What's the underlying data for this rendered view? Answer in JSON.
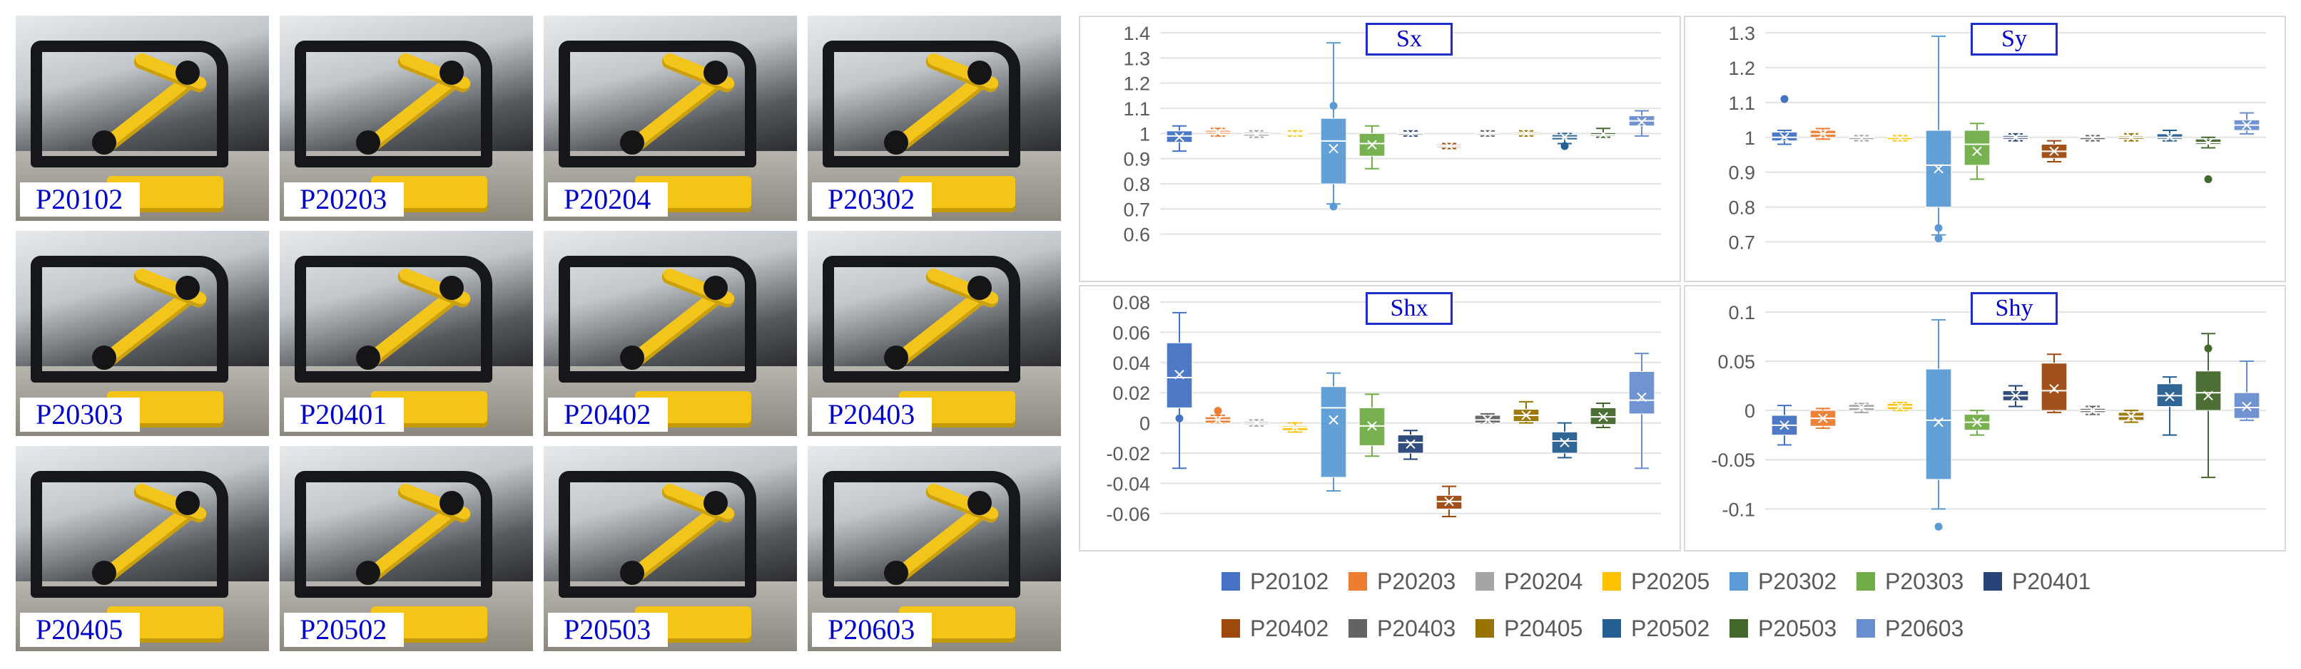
{
  "photos": [
    {
      "label": "P20102"
    },
    {
      "label": "P20203"
    },
    {
      "label": "P20204"
    },
    {
      "label": "P20302"
    },
    {
      "label": "P20303"
    },
    {
      "label": "P20401"
    },
    {
      "label": "P20402"
    },
    {
      "label": "P20403"
    },
    {
      "label": "P20405"
    },
    {
      "label": "P20502"
    },
    {
      "label": "P20503"
    },
    {
      "label": "P20603"
    }
  ],
  "colors": {
    "P20102": "#4472C4",
    "P20203": "#ED7D31",
    "P20204": "#A5A5A5",
    "P20205": "#FFC000",
    "P20302": "#5B9BD5",
    "P20303": "#70AD47",
    "P20401": "#264478",
    "P20402": "#9E480E",
    "P20403": "#636363",
    "P20405": "#997300",
    "P20502": "#255E91",
    "P20503": "#43682B",
    "P20603": "#698ED0"
  },
  "chart_data": [
    {
      "type": "box",
      "title": "Sx",
      "ylim": [
        0.5,
        1.4
      ],
      "yticks": [
        0.6,
        0.7,
        0.8,
        0.9,
        1,
        1.1,
        1.2,
        1.3,
        1.4
      ],
      "ytick_labels": [
        "0.6",
        "0.7",
        "0.8",
        "0.9",
        "1",
        "1.1",
        "1.2",
        "1.3",
        "1.4"
      ],
      "series": [
        {
          "name": "P20102",
          "min": 0.93,
          "q1": 0.965,
          "median": 0.99,
          "q3": 1.01,
          "max": 1.03,
          "mean": 0.985,
          "points": []
        },
        {
          "name": "P20203",
          "min": 0.99,
          "q1": 0.998,
          "median": 1.005,
          "q3": 1.012,
          "max": 1.02,
          "mean": 1.005,
          "points": []
        },
        {
          "name": "P20204",
          "min": 0.985,
          "q1": 0.99,
          "median": 0.998,
          "q3": 1.004,
          "max": 1.01,
          "mean": 0.998,
          "points": []
        },
        {
          "name": "P20205",
          "min": 0.99,
          "q1": 0.995,
          "median": 1.0,
          "q3": 1.004,
          "max": 1.01,
          "mean": 0.998,
          "points": []
        },
        {
          "name": "P20302",
          "min": 0.72,
          "q1": 0.8,
          "median": 0.97,
          "q3": 1.06,
          "max": 1.36,
          "mean": 0.94,
          "points": [
            0.71,
            1.11
          ]
        },
        {
          "name": "P20303",
          "min": 0.86,
          "q1": 0.91,
          "median": 0.96,
          "q3": 1.0,
          "max": 1.03,
          "mean": 0.955,
          "points": []
        },
        {
          "name": "P20401",
          "min": 0.99,
          "q1": 0.995,
          "median": 1.0,
          "q3": 1.003,
          "max": 1.01,
          "mean": 0.999,
          "points": []
        },
        {
          "name": "P20402",
          "min": 0.94,
          "q1": 0.945,
          "median": 0.95,
          "q3": 0.955,
          "max": 0.96,
          "mean": 0.95,
          "points": []
        },
        {
          "name": "P20403",
          "min": 0.99,
          "q1": 0.995,
          "median": 1.0,
          "q3": 1.004,
          "max": 1.01,
          "mean": 1.0,
          "points": []
        },
        {
          "name": "P20405",
          "min": 0.99,
          "q1": 0.995,
          "median": 1.0,
          "q3": 1.005,
          "max": 1.01,
          "mean": 1.0,
          "points": []
        },
        {
          "name": "P20502",
          "min": 0.96,
          "q1": 0.975,
          "median": 0.985,
          "q3": 0.995,
          "max": 1.0,
          "mean": 0.985,
          "points": [
            0.95
          ]
        },
        {
          "name": "P20503",
          "min": 0.985,
          "q1": 0.99,
          "median": 0.995,
          "q3": 1.003,
          "max": 1.02,
          "mean": 0.997,
          "points": []
        },
        {
          "name": "P20603",
          "min": 0.99,
          "q1": 1.03,
          "median": 1.05,
          "q3": 1.07,
          "max": 1.09,
          "mean": 1.045,
          "points": []
        }
      ]
    },
    {
      "type": "box",
      "title": "Sy",
      "ylim": [
        0.65,
        1.3
      ],
      "yticks": [
        0.7,
        0.8,
        0.9,
        1,
        1.1,
        1.2,
        1.3
      ],
      "ytick_labels": [
        "0.7",
        "0.8",
        "0.9",
        "1",
        "1.1",
        "1.2",
        "1.3"
      ],
      "series": [
        {
          "name": "P20102",
          "min": 0.98,
          "q1": 0.99,
          "median": 1.0,
          "q3": 1.015,
          "max": 1.02,
          "mean": 1.0,
          "points": [
            1.11
          ]
        },
        {
          "name": "P20203",
          "min": 0.995,
          "q1": 1.0,
          "median": 1.01,
          "q3": 1.02,
          "max": 1.025,
          "mean": 1.01,
          "points": []
        },
        {
          "name": "P20204",
          "min": 0.99,
          "q1": 0.995,
          "median": 1.0,
          "q3": 1.0,
          "max": 1.005,
          "mean": 0.997,
          "points": []
        },
        {
          "name": "P20205",
          "min": 0.99,
          "q1": 0.995,
          "median": 1.0,
          "q3": 1.0,
          "max": 1.005,
          "mean": 0.997,
          "points": []
        },
        {
          "name": "P20302",
          "min": 0.72,
          "q1": 0.8,
          "median": 0.92,
          "q3": 1.02,
          "max": 1.29,
          "mean": 0.91,
          "points": [
            0.74,
            0.71
          ]
        },
        {
          "name": "P20303",
          "min": 0.88,
          "q1": 0.92,
          "median": 0.98,
          "q3": 1.02,
          "max": 1.04,
          "mean": 0.96,
          "points": []
        },
        {
          "name": "P20401",
          "min": 0.99,
          "q1": 0.995,
          "median": 1.0,
          "q3": 1.005,
          "max": 1.01,
          "mean": 1.0,
          "points": []
        },
        {
          "name": "P20402",
          "min": 0.93,
          "q1": 0.94,
          "median": 0.96,
          "q3": 0.98,
          "max": 0.99,
          "mean": 0.96,
          "points": []
        },
        {
          "name": "P20403",
          "min": 0.99,
          "q1": 0.995,
          "median": 1.0,
          "q3": 1.0,
          "max": 1.005,
          "mean": 0.998,
          "points": []
        },
        {
          "name": "P20405",
          "min": 0.99,
          "q1": 0.995,
          "median": 1.0,
          "q3": 1.004,
          "max": 1.01,
          "mean": 1.0,
          "points": []
        },
        {
          "name": "P20502",
          "min": 0.99,
          "q1": 0.995,
          "median": 1.0,
          "q3": 1.01,
          "max": 1.02,
          "mean": 1.002,
          "points": []
        },
        {
          "name": "P20503",
          "min": 0.97,
          "q1": 0.98,
          "median": 0.985,
          "q3": 0.995,
          "max": 1.0,
          "mean": 0.985,
          "points": [
            0.88
          ]
        },
        {
          "name": "P20603",
          "min": 1.01,
          "q1": 1.02,
          "median": 1.035,
          "q3": 1.05,
          "max": 1.07,
          "mean": 1.035,
          "points": []
        }
      ]
    },
    {
      "type": "box",
      "title": "Shx",
      "ylim": [
        -0.07,
        0.08
      ],
      "yticks": [
        -0.06,
        -0.04,
        -0.02,
        0,
        0.02,
        0.04,
        0.06,
        0.08
      ],
      "ytick_labels": [
        "-0.06",
        "-0.04",
        "-0.02",
        "0",
        "0.02",
        "0.04",
        "0.06",
        "0.08"
      ],
      "series": [
        {
          "name": "P20102",
          "min": -0.03,
          "q1": 0.01,
          "median": 0.03,
          "q3": 0.053,
          "max": 0.073,
          "mean": 0.032,
          "points": [
            0.003
          ]
        },
        {
          "name": "P20203",
          "min": 0.0,
          "q1": 0.0,
          "median": 0.002,
          "q3": 0.004,
          "max": 0.005,
          "mean": 0.002,
          "points": [
            0.008
          ]
        },
        {
          "name": "P20204",
          "min": -0.002,
          "q1": -0.001,
          "median": 0.0,
          "q3": 0.001,
          "max": 0.002,
          "mean": 0.0,
          "points": []
        },
        {
          "name": "P20205",
          "min": -0.006,
          "q1": -0.005,
          "median": -0.003,
          "q3": -0.002,
          "max": 0.0,
          "mean": -0.003,
          "points": []
        },
        {
          "name": "P20302",
          "min": -0.045,
          "q1": -0.036,
          "median": 0.01,
          "q3": 0.024,
          "max": 0.033,
          "mean": 0.002,
          "points": []
        },
        {
          "name": "P20303",
          "min": -0.022,
          "q1": -0.015,
          "median": -0.002,
          "q3": 0.01,
          "max": 0.019,
          "mean": -0.002,
          "points": []
        },
        {
          "name": "P20401",
          "min": -0.024,
          "q1": -0.02,
          "median": -0.013,
          "q3": -0.008,
          "max": -0.005,
          "mean": -0.014,
          "points": []
        },
        {
          "name": "P20402",
          "min": -0.062,
          "q1": -0.057,
          "median": -0.052,
          "q3": -0.048,
          "max": -0.042,
          "mean": -0.052,
          "points": []
        },
        {
          "name": "P20403",
          "min": 0.0,
          "q1": 0.0,
          "median": 0.002,
          "q3": 0.005,
          "max": 0.006,
          "mean": 0.002,
          "points": []
        },
        {
          "name": "P20405",
          "min": 0.0,
          "q1": 0.001,
          "median": 0.005,
          "q3": 0.009,
          "max": 0.014,
          "mean": 0.005,
          "points": []
        },
        {
          "name": "P20502",
          "min": -0.023,
          "q1": -0.02,
          "median": -0.012,
          "q3": -0.006,
          "max": 0.0,
          "mean": -0.013,
          "points": []
        },
        {
          "name": "P20503",
          "min": -0.003,
          "q1": -0.001,
          "median": 0.004,
          "q3": 0.01,
          "max": 0.013,
          "mean": 0.004,
          "points": []
        },
        {
          "name": "P20603",
          "min": -0.03,
          "q1": 0.006,
          "median": 0.015,
          "q3": 0.034,
          "max": 0.046,
          "mean": 0.017,
          "points": []
        }
      ]
    },
    {
      "type": "box",
      "title": "Shy",
      "ylim": [
        -0.12,
        0.11
      ],
      "yticks": [
        -0.1,
        -0.05,
        0,
        0.05,
        0.1
      ],
      "ytick_labels": [
        "-0.1",
        "-0.05",
        "0",
        "0.05",
        "0.1"
      ],
      "series": [
        {
          "name": "P20102",
          "min": -0.035,
          "q1": -0.025,
          "median": -0.015,
          "q3": -0.005,
          "max": 0.005,
          "mean": -0.015,
          "points": []
        },
        {
          "name": "P20203",
          "min": -0.018,
          "q1": -0.016,
          "median": -0.008,
          "q3": 0.0,
          "max": 0.002,
          "mean": -0.008,
          "points": []
        },
        {
          "name": "P20204",
          "min": -0.002,
          "q1": 0.0,
          "median": 0.003,
          "q3": 0.006,
          "max": 0.007,
          "mean": 0.003,
          "points": []
        },
        {
          "name": "P20205",
          "min": 0.0,
          "q1": 0.001,
          "median": 0.004,
          "q3": 0.007,
          "max": 0.008,
          "mean": 0.004,
          "points": []
        },
        {
          "name": "P20302",
          "min": -0.1,
          "q1": -0.07,
          "median": -0.01,
          "q3": 0.042,
          "max": 0.092,
          "mean": -0.012,
          "points": [
            -0.118
          ]
        },
        {
          "name": "P20303",
          "min": -0.025,
          "q1": -0.02,
          "median": -0.012,
          "q3": -0.004,
          "max": 0.0,
          "mean": -0.012,
          "points": []
        },
        {
          "name": "P20401",
          "min": 0.004,
          "q1": 0.01,
          "median": 0.015,
          "q3": 0.02,
          "max": 0.025,
          "mean": 0.015,
          "points": []
        },
        {
          "name": "P20402",
          "min": -0.002,
          "q1": 0.0,
          "median": 0.02,
          "q3": 0.048,
          "max": 0.057,
          "mean": 0.022,
          "points": []
        },
        {
          "name": "P20403",
          "min": -0.004,
          "q1": -0.002,
          "median": 0.0,
          "q3": 0.002,
          "max": 0.004,
          "mean": 0.0,
          "points": []
        },
        {
          "name": "P20405",
          "min": -0.012,
          "q1": -0.01,
          "median": -0.006,
          "q3": -0.002,
          "max": 0.0,
          "mean": -0.006,
          "points": []
        },
        {
          "name": "P20502",
          "min": -0.025,
          "q1": 0.004,
          "median": 0.015,
          "q3": 0.027,
          "max": 0.034,
          "mean": 0.014,
          "points": []
        },
        {
          "name": "P20503",
          "min": -0.068,
          "q1": 0.0,
          "median": 0.018,
          "q3": 0.04,
          "max": 0.078,
          "mean": 0.015,
          "points": [
            0.063
          ]
        },
        {
          "name": "P20603",
          "min": -0.01,
          "q1": -0.008,
          "median": 0.003,
          "q3": 0.018,
          "max": 0.05,
          "mean": 0.004,
          "points": []
        }
      ]
    }
  ],
  "legend": {
    "items": [
      "P20102",
      "P20203",
      "P20204",
      "P20205",
      "P20302",
      "P20303",
      "P20401",
      "P20402",
      "P20403",
      "P20405",
      "P20502",
      "P20503",
      "P20603"
    ]
  }
}
